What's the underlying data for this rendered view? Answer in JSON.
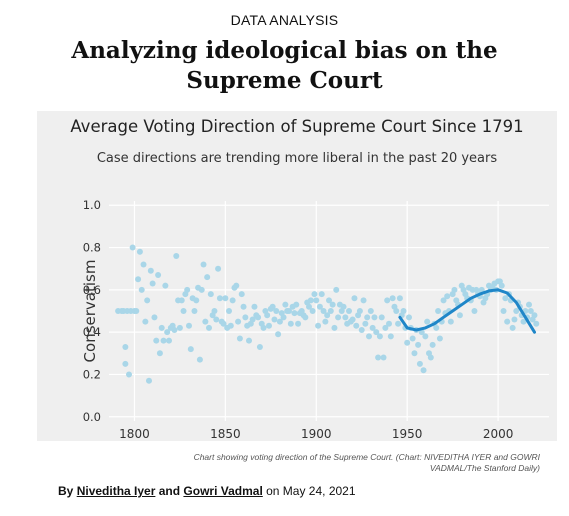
{
  "section_label": "DATA ANALYSIS",
  "headline_line1": "Analyzing ideological bias on the",
  "headline_line2": "Supreme Court",
  "caption_line1": "Chart showing voting direction of the Supreme Court. (Chart: NIVEDITHA IYER and GOWRI",
  "caption_line2": "VADMAL/The Stanford Daily)",
  "byline": {
    "prefix": "By",
    "author1": "Niveditha Iyer",
    "and": "and",
    "author2": "Gowri Vadmal",
    "date": "on May 24, 2021"
  },
  "colors": {
    "point": "#a9d6e8",
    "trend": "#1f86c8",
    "background": "#efefef",
    "grid": "#ffffff"
  },
  "chart_data": {
    "type": "scatter",
    "title": "Average Voting Direction of Supreme Court Since 1791",
    "subtitle": "Case directions are trending more liberal in the past 20 years",
    "xlabel": "",
    "ylabel": "Conservatism",
    "xlim": [
      1786,
      2028
    ],
    "ylim": [
      -0.02,
      1.02
    ],
    "xticks": [
      "1800",
      "1850",
      "1900",
      "1950",
      "2000"
    ],
    "yticks": [
      "0.0",
      "0.2",
      "0.4",
      "0.6",
      "0.8",
      "1.0"
    ],
    "grid": true,
    "points": [
      [
        1791,
        0.5
      ],
      [
        1793,
        0.5
      ],
      [
        1794,
        0.5
      ],
      [
        1795,
        0.33
      ],
      [
        1795,
        0.25
      ],
      [
        1796,
        0.5
      ],
      [
        1797,
        0.2
      ],
      [
        1798,
        0.5
      ],
      [
        1799,
        0.8
      ],
      [
        1800,
        0.5
      ],
      [
        1801,
        0.5
      ],
      [
        1802,
        0.65
      ],
      [
        1803,
        0.78
      ],
      [
        1804,
        0.6
      ],
      [
        1805,
        0.72
      ],
      [
        1806,
        0.45
      ],
      [
        1807,
        0.55
      ],
      [
        1808,
        0.17
      ],
      [
        1809,
        0.69
      ],
      [
        1810,
        0.63
      ],
      [
        1811,
        0.47
      ],
      [
        1812,
        0.36
      ],
      [
        1813,
        0.67
      ],
      [
        1814,
        0.3
      ],
      [
        1815,
        0.42
      ],
      [
        1816,
        0.36
      ],
      [
        1817,
        0.62
      ],
      [
        1818,
        0.4
      ],
      [
        1819,
        0.36
      ],
      [
        1820,
        0.42
      ],
      [
        1821,
        0.43
      ],
      [
        1822,
        0.41
      ],
      [
        1823,
        0.76
      ],
      [
        1824,
        0.55
      ],
      [
        1825,
        0.42
      ],
      [
        1826,
        0.55
      ],
      [
        1827,
        0.5
      ],
      [
        1828,
        0.58
      ],
      [
        1829,
        0.6
      ],
      [
        1830,
        0.43
      ],
      [
        1831,
        0.32
      ],
      [
        1832,
        0.56
      ],
      [
        1833,
        0.5
      ],
      [
        1834,
        0.55
      ],
      [
        1835,
        0.61
      ],
      [
        1836,
        0.27
      ],
      [
        1837,
        0.6
      ],
      [
        1838,
        0.72
      ],
      [
        1839,
        0.45
      ],
      [
        1840,
        0.66
      ],
      [
        1841,
        0.42
      ],
      [
        1842,
        0.58
      ],
      [
        1843,
        0.48
      ],
      [
        1844,
        0.5
      ],
      [
        1845,
        0.46
      ],
      [
        1846,
        0.7
      ],
      [
        1847,
        0.56
      ],
      [
        1848,
        0.45
      ],
      [
        1849,
        0.44
      ],
      [
        1850,
        0.56
      ],
      [
        1851,
        0.42
      ],
      [
        1852,
        0.5
      ],
      [
        1853,
        0.43
      ],
      [
        1854,
        0.55
      ],
      [
        1855,
        0.61
      ],
      [
        1856,
        0.62
      ],
      [
        1857,
        0.45
      ],
      [
        1858,
        0.37
      ],
      [
        1859,
        0.58
      ],
      [
        1860,
        0.52
      ],
      [
        1861,
        0.47
      ],
      [
        1862,
        0.43
      ],
      [
        1863,
        0.36
      ],
      [
        1864,
        0.44
      ],
      [
        1865,
        0.46
      ],
      [
        1866,
        0.52
      ],
      [
        1867,
        0.48
      ],
      [
        1868,
        0.47
      ],
      [
        1869,
        0.33
      ],
      [
        1870,
        0.44
      ],
      [
        1871,
        0.42
      ],
      [
        1872,
        0.5
      ],
      [
        1873,
        0.48
      ],
      [
        1874,
        0.43
      ],
      [
        1875,
        0.51
      ],
      [
        1876,
        0.52
      ],
      [
        1877,
        0.46
      ],
      [
        1878,
        0.5
      ],
      [
        1879,
        0.39
      ],
      [
        1880,
        0.45
      ],
      [
        1881,
        0.49
      ],
      [
        1882,
        0.47
      ],
      [
        1883,
        0.53
      ],
      [
        1884,
        0.5
      ],
      [
        1885,
        0.5
      ],
      [
        1886,
        0.44
      ],
      [
        1887,
        0.52
      ],
      [
        1888,
        0.49
      ],
      [
        1889,
        0.53
      ],
      [
        1890,
        0.44
      ],
      [
        1891,
        0.49
      ],
      [
        1892,
        0.5
      ],
      [
        1893,
        0.48
      ],
      [
        1894,
        0.47
      ],
      [
        1895,
        0.54
      ],
      [
        1896,
        0.52
      ],
      [
        1897,
        0.55
      ],
      [
        1898,
        0.5
      ],
      [
        1899,
        0.58
      ],
      [
        1900,
        0.55
      ],
      [
        1901,
        0.43
      ],
      [
        1902,
        0.52
      ],
      [
        1903,
        0.58
      ],
      [
        1904,
        0.5
      ],
      [
        1905,
        0.45
      ],
      [
        1906,
        0.48
      ],
      [
        1907,
        0.55
      ],
      [
        1908,
        0.5
      ],
      [
        1909,
        0.53
      ],
      [
        1910,
        0.42
      ],
      [
        1911,
        0.6
      ],
      [
        1912,
        0.47
      ],
      [
        1913,
        0.53
      ],
      [
        1914,
        0.5
      ],
      [
        1915,
        0.52
      ],
      [
        1916,
        0.47
      ],
      [
        1917,
        0.44
      ],
      [
        1918,
        0.5
      ],
      [
        1919,
        0.45
      ],
      [
        1920,
        0.46
      ],
      [
        1921,
        0.56
      ],
      [
        1922,
        0.43
      ],
      [
        1923,
        0.48
      ],
      [
        1924,
        0.5
      ],
      [
        1925,
        0.41
      ],
      [
        1926,
        0.55
      ],
      [
        1927,
        0.44
      ],
      [
        1928,
        0.47
      ],
      [
        1929,
        0.38
      ],
      [
        1930,
        0.5
      ],
      [
        1931,
        0.42
      ],
      [
        1932,
        0.47
      ],
      [
        1933,
        0.4
      ],
      [
        1934,
        0.28
      ],
      [
        1935,
        0.38
      ],
      [
        1936,
        0.47
      ],
      [
        1937,
        0.28
      ],
      [
        1938,
        0.42
      ],
      [
        1939,
        0.55
      ],
      [
        1940,
        0.44
      ],
      [
        1941,
        0.38
      ],
      [
        1942,
        0.56
      ],
      [
        1943,
        0.52
      ],
      [
        1944,
        0.5
      ],
      [
        1945,
        0.44
      ],
      [
        1946,
        0.56
      ],
      [
        1947,
        0.48
      ],
      [
        1948,
        0.5
      ],
      [
        1949,
        0.42
      ],
      [
        1950,
        0.35
      ],
      [
        1951,
        0.47
      ],
      [
        1952,
        0.42
      ],
      [
        1953,
        0.37
      ],
      [
        1954,
        0.3
      ],
      [
        1955,
        0.41
      ],
      [
        1956,
        0.34
      ],
      [
        1957,
        0.25
      ],
      [
        1958,
        0.4
      ],
      [
        1959,
        0.22
      ],
      [
        1960,
        0.38
      ],
      [
        1961,
        0.45
      ],
      [
        1962,
        0.3
      ],
      [
        1963,
        0.28
      ],
      [
        1964,
        0.34
      ],
      [
        1965,
        0.44
      ],
      [
        1966,
        0.42
      ],
      [
        1967,
        0.5
      ],
      [
        1968,
        0.37
      ],
      [
        1969,
        0.45
      ],
      [
        1970,
        0.55
      ],
      [
        1971,
        0.49
      ],
      [
        1972,
        0.57
      ],
      [
        1973,
        0.5
      ],
      [
        1974,
        0.45
      ],
      [
        1975,
        0.58
      ],
      [
        1976,
        0.6
      ],
      [
        1977,
        0.55
      ],
      [
        1978,
        0.53
      ],
      [
        1979,
        0.48
      ],
      [
        1980,
        0.62
      ],
      [
        1981,
        0.6
      ],
      [
        1982,
        0.58
      ],
      [
        1983,
        0.56
      ],
      [
        1984,
        0.61
      ],
      [
        1985,
        0.55
      ],
      [
        1986,
        0.6
      ],
      [
        1987,
        0.5
      ],
      [
        1988,
        0.6
      ],
      [
        1989,
        0.58
      ],
      [
        1990,
        0.57
      ],
      [
        1991,
        0.6
      ],
      [
        1992,
        0.54
      ],
      [
        1993,
        0.56
      ],
      [
        1994,
        0.58
      ],
      [
        1995,
        0.62
      ],
      [
        1996,
        0.6
      ],
      [
        1997,
        0.61
      ],
      [
        1998,
        0.63
      ],
      [
        1999,
        0.6
      ],
      [
        2000,
        0.64
      ],
      [
        2001,
        0.64
      ],
      [
        2002,
        0.62
      ],
      [
        2003,
        0.5
      ],
      [
        2004,
        0.56
      ],
      [
        2005,
        0.45
      ],
      [
        2006,
        0.58
      ],
      [
        2007,
        0.55
      ],
      [
        2008,
        0.42
      ],
      [
        2009,
        0.46
      ],
      [
        2010,
        0.5
      ],
      [
        2011,
        0.54
      ],
      [
        2012,
        0.52
      ],
      [
        2013,
        0.48
      ],
      [
        2014,
        0.45
      ],
      [
        2015,
        0.5
      ],
      [
        2016,
        0.47
      ],
      [
        2017,
        0.53
      ],
      [
        2018,
        0.5
      ],
      [
        2019,
        0.46
      ],
      [
        2020,
        0.48
      ],
      [
        2021,
        0.44
      ]
    ],
    "trend": {
      "x": [
        1946,
        1950,
        1955,
        1960,
        1965,
        1970,
        1975,
        1980,
        1985,
        1990,
        1995,
        2000,
        2005,
        2010,
        2015,
        2020
      ],
      "y": [
        0.47,
        0.42,
        0.41,
        0.42,
        0.44,
        0.47,
        0.5,
        0.53,
        0.56,
        0.58,
        0.595,
        0.6,
        0.585,
        0.54,
        0.47,
        0.4
      ]
    }
  }
}
